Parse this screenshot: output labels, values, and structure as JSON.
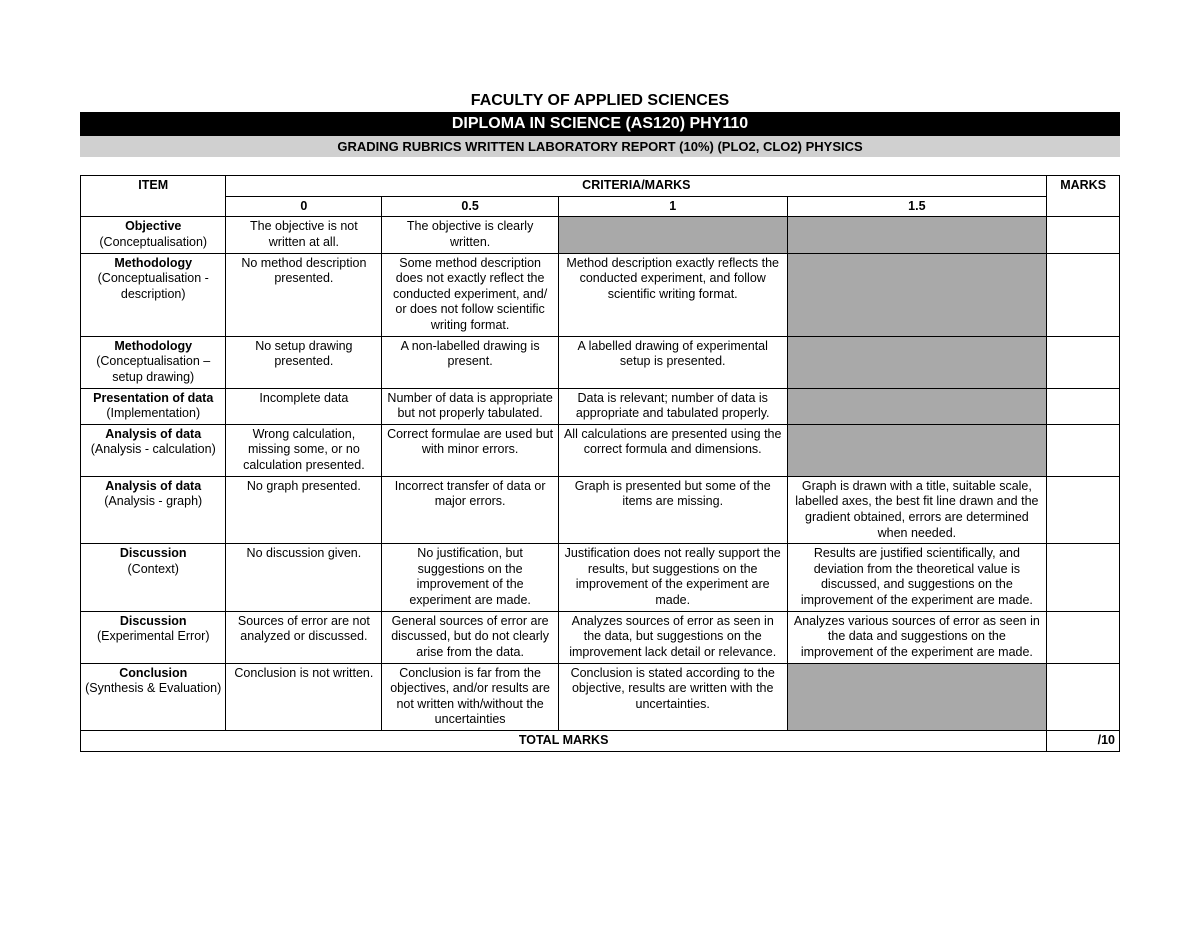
{
  "header": {
    "faculty": "FACULTY OF APPLIED SCIENCES",
    "program": "DIPLOMA IN SCIENCE (AS120) PHY110",
    "rubric_title": "GRADING RUBRICS WRITTEN LABORATORY REPORT (10%) (PLO2, CLO2) PHYSICS"
  },
  "columns": {
    "item": "ITEM",
    "criteria_header": "CRITERIA/MARKS",
    "c0": "0",
    "c05": "0.5",
    "c1": "1",
    "c15": "1.5",
    "marks": "MARKS"
  },
  "rows": [
    {
      "title": "Objective",
      "sub": "(Conceptualisation)",
      "c0": "The objective is not written at all.",
      "c05": "The objective is clearly written.",
      "c1": null,
      "c15": null
    },
    {
      "title": "Methodology",
      "sub": "(Conceptualisation - description)",
      "c0": "No method description presented.",
      "c05": "Some method description does not exactly reflect the conducted experiment, and/ or does not follow scientific writing format.",
      "c1": "Method description exactly reflects the conducted experiment, and follow scientific writing format.",
      "c15": null
    },
    {
      "title": "Methodology",
      "sub": "(Conceptualisation – setup drawing)",
      "c0": "No setup drawing presented.",
      "c05": "A non-labelled drawing is present.",
      "c1": "A labelled drawing of experimental setup is presented.",
      "c15": null
    },
    {
      "title": "Presentation of data",
      "sub": "(Implementation)",
      "c0": "Incomplete data",
      "c05": "Number of data is appropriate but not properly tabulated.",
      "c1": "Data is relevant; number of data is appropriate and tabulated properly.",
      "c15": null
    },
    {
      "title": "Analysis of data",
      "sub": "(Analysis - calculation)",
      "c0": "Wrong calculation, missing some, or no calculation presented.",
      "c05": "Correct formulae are used but with minor errors.",
      "c1": "All calculations are presented using the correct formula and dimensions.",
      "c15": null
    },
    {
      "title": "Analysis of data",
      "sub": "(Analysis - graph)",
      "c0": "No graph presented.",
      "c05": "Incorrect transfer of data or major errors.",
      "c1": "Graph is presented but some of the items are missing.",
      "c15": "Graph is drawn with a title, suitable scale, labelled axes, the best fit line drawn and the gradient obtained, errors are determined when needed."
    },
    {
      "title": "Discussion",
      "sub": "(Context)",
      "c0": "No discussion given.",
      "c05": "No justification, but suggestions on the improvement of the experiment are made.",
      "c1": "Justification does not really support the results, but suggestions on the improvement of the experiment are made.",
      "c15": "Results are justified scientifically, and deviation from the theoretical value is discussed, and suggestions on the improvement of the experiment are made."
    },
    {
      "title": "Discussion",
      "sub": "(Experimental Error)",
      "c0": "Sources of error are not analyzed or discussed.",
      "c05": "General sources of error are discussed, but do not clearly arise from the data.",
      "c1": "Analyzes sources of error as seen in the data, but suggestions on the improvement lack detail or relevance.",
      "c15": "Analyzes various sources of error as seen in the data and suggestions on the improvement of the experiment are made."
    },
    {
      "title": "Conclusion",
      "sub": "(Synthesis & Evaluation)",
      "c0": "Conclusion is not written.",
      "c05": "Conclusion is far from the objectives, and/or results are not written with/without the uncertainties",
      "c1": "Conclusion is stated according to the objective, results are written with the uncertainties.",
      "c15": null
    }
  ],
  "footer": {
    "total_label": "TOTAL MARKS",
    "total_value": "/10"
  },
  "style": {
    "shaded_bg": "#a9a9a9",
    "black": "#000000",
    "grey_header": "#d0d0d0"
  }
}
